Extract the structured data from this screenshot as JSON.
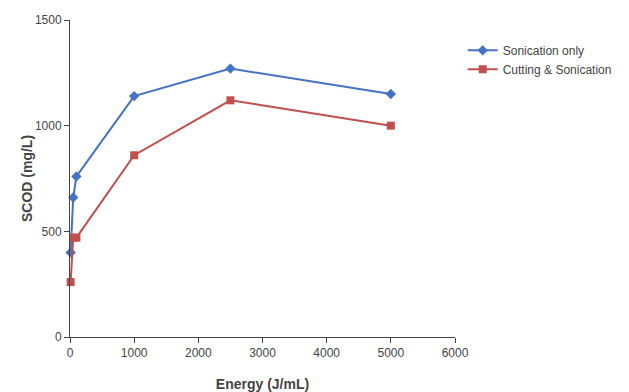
{
  "chart_data": {
    "type": "line",
    "x": [
      10,
      50,
      100,
      1000,
      2500,
      5000
    ],
    "series": [
      {
        "name": "Sonication only",
        "color": "#4472C4",
        "marker": "diamond",
        "values": [
          400,
          660,
          760,
          1140,
          1270,
          1150
        ]
      },
      {
        "name": "Cutting & Sonication",
        "color": "#C0504D",
        "marker": "square",
        "values": [
          260,
          470,
          470,
          860,
          1120,
          1000
        ]
      }
    ],
    "xlabel": "Energy (J/mL)",
    "ylabel": "SCOD (mg/L)",
    "xlim": [
      0,
      6000
    ],
    "ylim": [
      0,
      1500
    ],
    "xticks": [
      0,
      1000,
      2000,
      3000,
      4000,
      5000,
      6000
    ],
    "yticks": [
      0,
      500,
      1000,
      1500
    ],
    "grid": false,
    "legend": "right"
  }
}
